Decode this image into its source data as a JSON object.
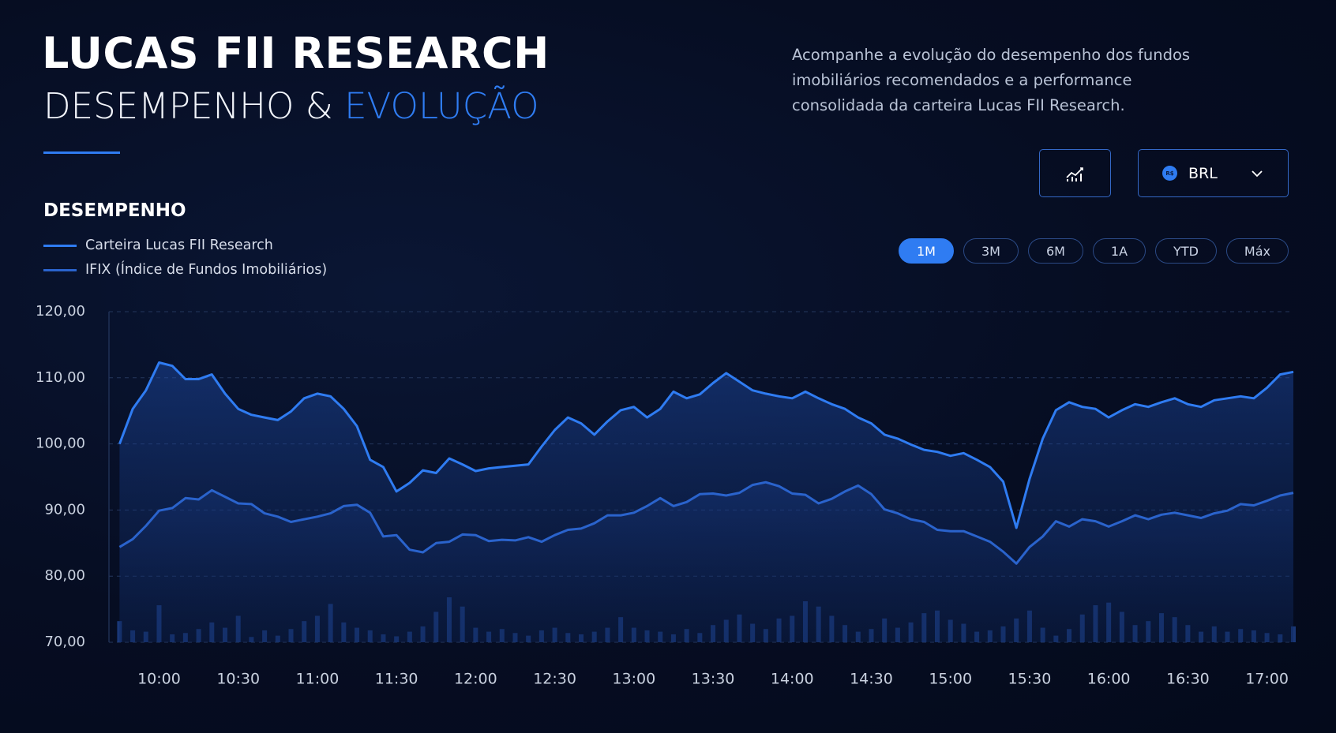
{
  "header": {
    "title": "LUCAS FII RESEARCH",
    "subtitle": "DESEMPENHO &",
    "subtitle_highlight": "EVOLUÇÃO",
    "description": "Acompanhe a evolução do desempenho dos fundos imobiliários recomendados e a performance consolidada da carteira Lucas FII Research."
  },
  "controls": {
    "currency_symbol": "R$",
    "currency": "BRL",
    "ranges": [
      "1M",
      "3M",
      "6M",
      "1A",
      "YTD",
      "Máx"
    ],
    "active_range": 0
  },
  "section_title": "DESEMPENHO",
  "chart_data": {
    "type": "line",
    "x": [
      585,
      590,
      595,
      600,
      605,
      610,
      615,
      620,
      625,
      630,
      635,
      640,
      645,
      650,
      655,
      660,
      665,
      670,
      675,
      680,
      685,
      690,
      695,
      700,
      705,
      710,
      715,
      720,
      725,
      730,
      735,
      740,
      745,
      750,
      755,
      760,
      765,
      770,
      775,
      780,
      785,
      790,
      795,
      800,
      805,
      810,
      815,
      820,
      825,
      830,
      835,
      840,
      845,
      850,
      855,
      860,
      865,
      870,
      875,
      880,
      885,
      890,
      895,
      900,
      905,
      910,
      915,
      920,
      925,
      930,
      935,
      940,
      945,
      950,
      955,
      960,
      965,
      970,
      975,
      980,
      985,
      990,
      995,
      1000,
      1005,
      1010,
      1015,
      1020,
      1025,
      1030
    ],
    "series": [
      {
        "name": "Carteira Lucas FII Research",
        "color": "#2f7cf2",
        "values": [
          100.0,
          105.3,
          108.1,
          112.3,
          111.8,
          109.8,
          109.8,
          110.5,
          107.6,
          105.3,
          104.4,
          104.0,
          103.6,
          104.9,
          106.9,
          107.6,
          107.2,
          105.3,
          102.7,
          97.6,
          96.5,
          92.8,
          94.1,
          96.0,
          95.6,
          97.8,
          96.9,
          95.9,
          96.3,
          96.5,
          96.7,
          96.9,
          99.6,
          102.1,
          104.0,
          103.1,
          101.4,
          103.4,
          105.1,
          105.6,
          104.0,
          105.3,
          107.9,
          106.9,
          107.5,
          109.2,
          110.7,
          109.4,
          108.1,
          107.6,
          107.2,
          106.9,
          107.9,
          106.9,
          106.0,
          105.3,
          104.0,
          103.1,
          101.4,
          100.8,
          99.9,
          99.1,
          98.8,
          98.2,
          98.6,
          97.6,
          96.5,
          94.3,
          87.3,
          94.7,
          100.8,
          105.1,
          106.3,
          105.6,
          105.3,
          104.0,
          105.1,
          106.0,
          105.6,
          106.3,
          106.9,
          106.0,
          105.6,
          106.6,
          106.9,
          107.2,
          106.9,
          108.5,
          110.5,
          110.9
        ]
      },
      {
        "name": "IFIX (Índice de Fundos Imobiliários)",
        "color": "#2a63cc",
        "values": [
          84.4,
          85.6,
          87.6,
          89.9,
          90.3,
          91.8,
          91.6,
          93.0,
          92.0,
          91.0,
          90.9,
          89.5,
          89.0,
          88.2,
          88.6,
          89.0,
          89.5,
          90.6,
          90.8,
          89.6,
          86.0,
          86.2,
          84.0,
          83.6,
          85.0,
          85.2,
          86.3,
          86.2,
          85.3,
          85.5,
          85.4,
          85.9,
          85.2,
          86.2,
          87.0,
          87.2,
          88.0,
          89.2,
          89.2,
          89.6,
          90.6,
          91.8,
          90.6,
          91.2,
          92.4,
          92.5,
          92.2,
          92.6,
          93.8,
          94.2,
          93.6,
          92.5,
          92.3,
          91.0,
          91.7,
          92.8,
          93.7,
          92.4,
          90.1,
          89.5,
          88.6,
          88.2,
          87.0,
          86.8,
          86.8,
          86.0,
          85.2,
          83.7,
          81.9,
          84.4,
          86.0,
          88.3,
          87.5,
          88.6,
          88.3,
          87.5,
          88.3,
          89.2,
          88.6,
          89.3,
          89.6,
          89.2,
          88.8,
          89.5,
          89.9,
          90.9,
          90.7,
          91.4,
          92.2,
          92.6
        ]
      }
    ],
    "bars": {
      "color": "#1d3f86",
      "values": [
        73.2,
        71.8,
        71.6,
        75.6,
        71.2,
        71.4,
        72.0,
        73.0,
        72.2,
        74.0,
        70.8,
        71.8,
        71.0,
        72.0,
        73.2,
        74.0,
        75.8,
        73.0,
        72.2,
        71.8,
        71.2,
        70.9,
        71.6,
        72.4,
        74.6,
        76.8,
        75.4,
        72.2,
        71.6,
        72.0,
        71.4,
        71.0,
        71.8,
        72.2,
        71.4,
        71.2,
        71.6,
        72.2,
        73.8,
        72.2,
        71.8,
        71.6,
        71.2,
        72.0,
        71.4,
        72.6,
        73.4,
        74.2,
        72.8,
        72.0,
        73.6,
        74.0,
        76.2,
        75.4,
        74.0,
        72.6,
        71.6,
        72.0,
        73.6,
        72.2,
        73.0,
        74.4,
        74.8,
        73.4,
        72.8,
        71.6,
        71.8,
        72.4,
        73.6,
        74.8,
        72.2,
        71.0,
        72.0,
        74.2,
        75.6,
        76.0,
        74.6,
        72.6,
        73.2,
        74.4,
        73.8,
        72.6,
        71.6,
        72.4,
        71.6,
        72.0,
        71.8,
        71.4,
        71.2,
        72.4
      ]
    },
    "xlim": [
      581,
      1030
    ],
    "xticks": [
      {
        "value": 600,
        "label": "10:00"
      },
      {
        "value": 630,
        "label": "10:30"
      },
      {
        "value": 660,
        "label": "11:00"
      },
      {
        "value": 690,
        "label": "11:30"
      },
      {
        "value": 720,
        "label": "12:00"
      },
      {
        "value": 750,
        "label": "12:30"
      },
      {
        "value": 780,
        "label": "13:00"
      },
      {
        "value": 810,
        "label": "13:30"
      },
      {
        "value": 840,
        "label": "14:00"
      },
      {
        "value": 870,
        "label": "14:30"
      },
      {
        "value": 900,
        "label": "15:00"
      },
      {
        "value": 930,
        "label": "15:30"
      },
      {
        "value": 960,
        "label": "16:00"
      },
      {
        "value": 990,
        "label": "16:30"
      },
      {
        "value": 1020,
        "label": "17:00"
      }
    ],
    "ylim": [
      70,
      120
    ],
    "yticks": [
      {
        "value": 70,
        "label": "70,00"
      },
      {
        "value": 80,
        "label": "80,00"
      },
      {
        "value": 90,
        "label": "90,00"
      },
      {
        "value": 100,
        "label": "100,00"
      },
      {
        "value": 110,
        "label": "110,00"
      },
      {
        "value": 120,
        "label": "120,00"
      }
    ],
    "grid": true
  }
}
